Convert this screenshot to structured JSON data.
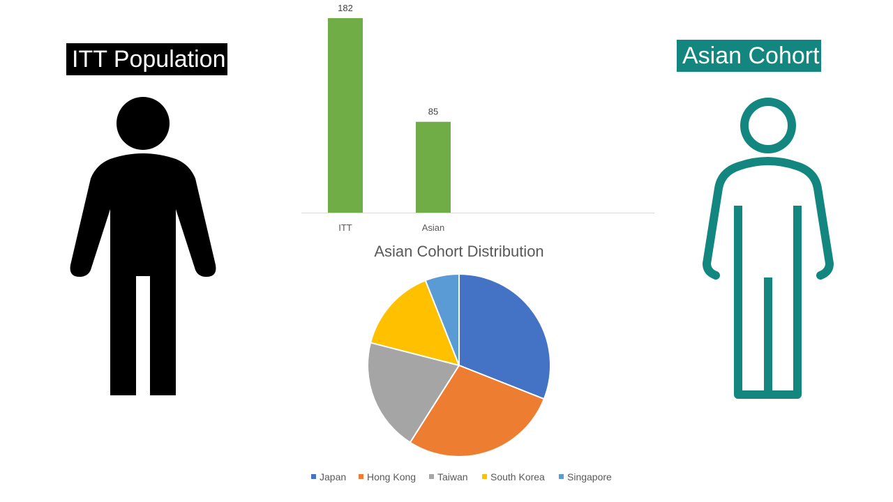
{
  "labels": {
    "itt": "ITT Population",
    "asian": "Asian Cohort"
  },
  "colors": {
    "itt_figure": "#000000",
    "asian_figure": "#12867f",
    "bar": "#70ad47"
  },
  "chart_data": [
    {
      "type": "bar",
      "title": "",
      "categories": [
        "ITT",
        "Asian"
      ],
      "values": [
        182,
        85
      ],
      "xlabel": "",
      "ylabel": "",
      "ylim": [
        0,
        182
      ],
      "data_labels": true,
      "grid": false
    },
    {
      "type": "pie",
      "title": "Asian Cohort Distribution",
      "slices": [
        {
          "label": "Japan",
          "value": 31,
          "color": "#4472c4"
        },
        {
          "label": "Hong Kong",
          "value": 28,
          "color": "#ed7d31"
        },
        {
          "label": "Taiwan",
          "value": 20,
          "color": "#a5a5a5"
        },
        {
          "label": "South Korea",
          "value": 15,
          "color": "#ffc000"
        },
        {
          "label": "Singapore",
          "value": 6,
          "color": "#5b9bd5"
        }
      ],
      "legend": "bottom"
    }
  ]
}
